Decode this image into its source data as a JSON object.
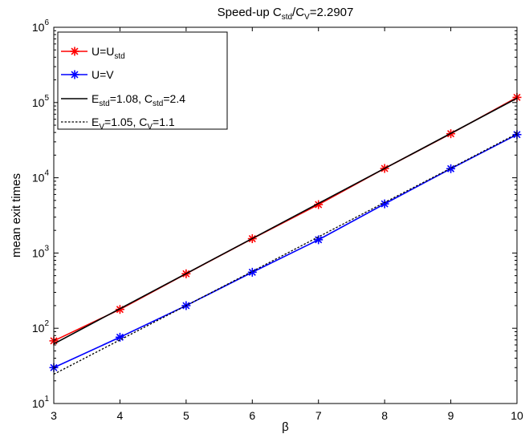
{
  "chart_data": {
    "type": "line",
    "title": {
      "main": "Speed-up C",
      "sub1": "std",
      "mid": "/C",
      "sub2": "V",
      "tail": "=2.2907"
    },
    "xlabel": "β",
    "ylabel": "mean exit times",
    "yscale": "log",
    "xlim": [
      3,
      10
    ],
    "ylim_exp": [
      1,
      6
    ],
    "x_ticks": [
      "3",
      "4",
      "5",
      "6",
      "7",
      "8",
      "9",
      "10"
    ],
    "y_ticks": [
      {
        "base": "10",
        "exp": "1"
      },
      {
        "base": "10",
        "exp": "2"
      },
      {
        "base": "10",
        "exp": "3"
      },
      {
        "base": "10",
        "exp": "4"
      },
      {
        "base": "10",
        "exp": "5"
      },
      {
        "base": "10",
        "exp": "6"
      }
    ],
    "x": [
      3,
      4,
      5,
      6,
      7,
      8,
      9,
      10
    ],
    "legend_position": "top-left",
    "series": [
      {
        "key": "ustd",
        "legend": {
          "main": "U=U",
          "sub": "std",
          "tail": ""
        },
        "color": "#ff0000",
        "marker": "asterisk",
        "style": "solid",
        "values": [
          68,
          178,
          530,
          1550,
          4400,
          13300,
          38500,
          117000
        ]
      },
      {
        "key": "uv",
        "legend": {
          "main": "U=V",
          "sub": "",
          "tail": ""
        },
        "color": "#0000ff",
        "marker": "asterisk",
        "style": "solid",
        "values": [
          30,
          76,
          200,
          555,
          1500,
          4500,
          13200,
          37500
        ]
      },
      {
        "key": "fit_std",
        "legend": {
          "main": "E",
          "sub": "std",
          "mid": "=1.08, C",
          "sub2": "std",
          "tail": "=2.4"
        },
        "color": "#000000",
        "marker": "none",
        "style": "solid",
        "values": [
          62,
          182,
          533,
          1560,
          4560,
          13300,
          38900,
          114000
        ]
      },
      {
        "key": "fit_v",
        "legend": {
          "main": "E",
          "sub": "V",
          "mid": "=1.05, C",
          "sub2": "V",
          "tail": "=1.1"
        },
        "color": "#000000",
        "marker": "none",
        "style": "dotted",
        "values": [
          24.5,
          70,
          200,
          570,
          1640,
          4700,
          13400,
          38500
        ]
      }
    ]
  }
}
